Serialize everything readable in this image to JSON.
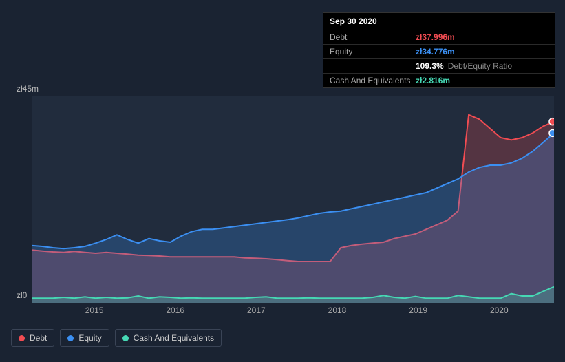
{
  "tooltip": {
    "date": "Sep 30 2020",
    "rows": [
      {
        "label": "Debt",
        "value": "zł37.996m",
        "color": "#f14c52",
        "note": ""
      },
      {
        "label": "Equity",
        "value": "zł34.776m",
        "color": "#3b8ff2",
        "note": ""
      },
      {
        "label": "",
        "value": "109.3%",
        "color": "#ffffff",
        "note": "Debt/Equity Ratio"
      },
      {
        "label": "Cash And Equivalents",
        "value": "zł2.816m",
        "color": "#46d8b4",
        "note": ""
      }
    ]
  },
  "chart": {
    "type": "area",
    "background_color": "#212c3d",
    "page_background": "#1a2332",
    "y_axis": {
      "min": 0,
      "max": 45,
      "labels": [
        "zł45m",
        "zł0"
      ],
      "label_fontsize": 12,
      "label_color": "#bbbbbb"
    },
    "x_axis": {
      "ticks": [
        "2015",
        "2016",
        "2017",
        "2018",
        "2019",
        "2020"
      ],
      "tick_positions_pct": [
        12,
        27.5,
        43,
        58.5,
        74,
        89.5
      ],
      "label_fontsize": 12,
      "label_color": "#aaaaaa"
    },
    "series": [
      {
        "name": "Debt",
        "color": "#f14c52",
        "fill_opacity": 0.25,
        "line_width": 2,
        "values": [
          11.5,
          11.3,
          11.1,
          11.0,
          11.2,
          11.0,
          10.8,
          11.0,
          10.8,
          10.6,
          10.4,
          10.3,
          10.2,
          10.0,
          10.0,
          10.0,
          10.0,
          10.0,
          10.0,
          10.0,
          9.8,
          9.7,
          9.6,
          9.4,
          9.2,
          9.0,
          9.0,
          9.0,
          9.0,
          12.0,
          12.5,
          12.8,
          13.0,
          13.2,
          14.0,
          14.5,
          15.0,
          16.0,
          17.0,
          18.0,
          20.0,
          41.0,
          40.0,
          38.0,
          36.0,
          35.5,
          36.0,
          37.0,
          38.5,
          39.5
        ]
      },
      {
        "name": "Equity",
        "color": "#3b8ff2",
        "fill_opacity": 0.25,
        "line_width": 2,
        "values": [
          12.5,
          12.3,
          12.0,
          11.8,
          12.0,
          12.3,
          13.0,
          13.8,
          14.8,
          13.8,
          13.0,
          14.0,
          13.5,
          13.2,
          14.5,
          15.5,
          16.0,
          16.0,
          16.3,
          16.6,
          16.9,
          17.2,
          17.5,
          17.8,
          18.1,
          18.5,
          19.0,
          19.5,
          19.8,
          20.0,
          20.5,
          21.0,
          21.5,
          22.0,
          22.5,
          23.0,
          23.5,
          24.0,
          25.0,
          26.0,
          27.0,
          28.5,
          29.5,
          30.0,
          30.0,
          30.5,
          31.5,
          33.0,
          35.0,
          37.0
        ]
      },
      {
        "name": "Cash And Equivalents",
        "color": "#46d8b4",
        "fill_opacity": 0.25,
        "line_width": 2,
        "values": [
          1.0,
          1.0,
          1.0,
          1.2,
          1.0,
          1.3,
          1.0,
          1.2,
          1.0,
          1.1,
          1.5,
          1.0,
          1.3,
          1.2,
          1.0,
          1.1,
          1.0,
          1.0,
          1.0,
          1.0,
          1.0,
          1.2,
          1.3,
          1.0,
          1.0,
          1.0,
          1.1,
          1.0,
          1.0,
          1.0,
          1.0,
          1.0,
          1.2,
          1.6,
          1.2,
          1.0,
          1.4,
          1.0,
          1.0,
          1.0,
          1.6,
          1.3,
          1.0,
          1.0,
          1.0,
          2.0,
          1.5,
          1.5,
          2.5,
          3.5
        ]
      }
    ],
    "end_markers": [
      {
        "series": "Debt",
        "color": "#f14c52",
        "y_value": 39.5
      },
      {
        "series": "Equity",
        "color": "#3b8ff2",
        "y_value": 37.0
      }
    ]
  },
  "legend": {
    "items": [
      {
        "label": "Debt",
        "color": "#f14c52"
      },
      {
        "label": "Equity",
        "color": "#3b8ff2"
      },
      {
        "label": "Cash And Equivalents",
        "color": "#46d8b4"
      }
    ],
    "border_color": "#3a4456",
    "text_color": "#cccccc",
    "fontsize": 12
  }
}
